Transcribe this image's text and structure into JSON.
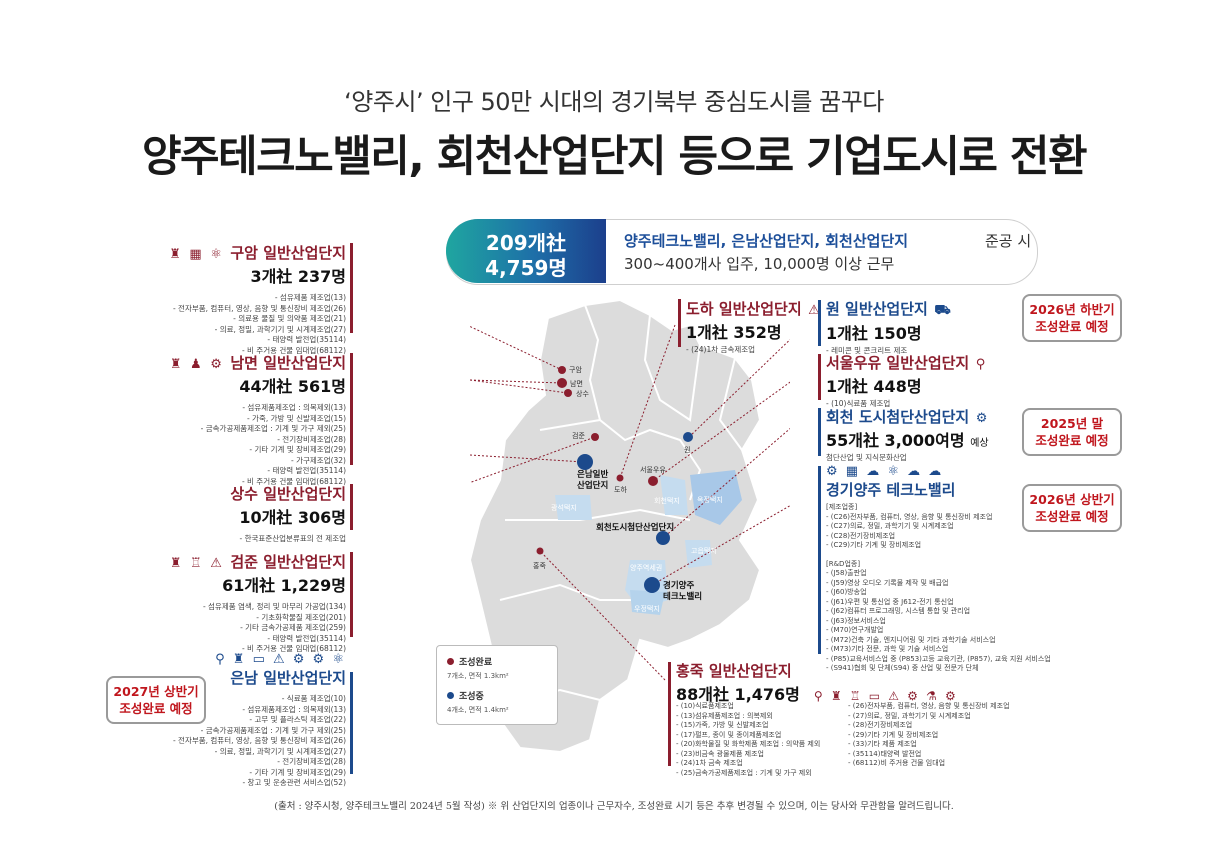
{
  "header": {
    "subtitle": "‘양주시’ 인구 50만 시대의 경기북부 중심도시를 꿈꾸다",
    "title": "양주테크노밸리, 회천산업단지 등으로 기업도시로 전환"
  },
  "banner": {
    "count": "209개社",
    "workers": "4,759명",
    "line1_highlight": "양주테크노밸리, 은남산업단지, 회천산업단지",
    "line1_rest": "준공 시",
    "line2": "300~400개사 입주, 10,000명 이상 근무"
  },
  "sites": {
    "guam": {
      "name": "구암 일반산업단지",
      "stats": "3개社 237명",
      "items": [
        "- 섬유제품 제조업(13)",
        "- 전자부품, 컴퓨터, 영상, 음향 및 통신장비 제조업(26)",
        "- 의료용 물질 및 의약품 제조업(21)",
        "- 의료, 정밀, 과학기기 및 시계제조업(27)",
        "- 태양력 발전업(35114)",
        "- 비 주거용 건물 임대업(68112)"
      ]
    },
    "nammyeon": {
      "name": "남면 일반산업단지",
      "stats": "44개社 561명",
      "items": [
        "- 섬유제품제조업 : 의복제외(13)",
        "- 가죽, 가방 및 신발제조업(15)",
        "- 금속가공제품제조업 : 기계 및 가구 제외(25)",
        "- 전기장비제조업(28)",
        "- 기타 기계 및 장비제조업(29)",
        "- 가구제조업(32)",
        "- 태양력 발전업(35114)",
        "- 비 주거용 건물 임대업(68112)"
      ]
    },
    "sangsu": {
      "name": "상수 일반산업단지",
      "stats": "10개社 306명",
      "items": [
        "- 한국표준산업분류표의 전 제조업"
      ]
    },
    "geomjun": {
      "name": "검준 일반산업단지",
      "stats": "61개社 1,229명",
      "items": [
        "- 섬유제품 염색, 정리 및 마무리 가공업(134)",
        "- 기초화학물질 제조업(201)",
        "- 기타 금속가공제품 제조업(259)",
        "- 태양력 발전업(35114)",
        "- 비 주거용 건물 임대업(68112)"
      ]
    },
    "eunnam": {
      "name": "은남 일반산업단지",
      "items": [
        "- 식료품 제조업(10)",
        "- 섬유제품제조업 : 의복제외(13)",
        "- 고무 및 플라스틱 제조업(22)",
        "- 금속가공제품제조업 : 기계 및 가구 제외(25)",
        "- 전자부품, 컴퓨터, 영상, 음향 및 통신장비 제조업(26)",
        "- 의료, 정밀, 과학기기 및 시계제조업(27)",
        "- 전기장비제조업(28)",
        "- 기타 기계 및 장비제조업(29)",
        "- 창고 및 운송관련 서비스업(52)"
      ]
    },
    "doha": {
      "name": "도하 일반산업단지",
      "stats": "1개社 352명",
      "items": [
        "- (24)1차 금속제조업"
      ]
    },
    "won": {
      "name": "원 일반산업단지",
      "stats": "1개社 150명",
      "items": [
        "- 레미콘 및 콘크리트 제조"
      ]
    },
    "seoulmilk": {
      "name": "서울우유 일반산업단지",
      "stats": "1개社 448명",
      "items": [
        "- (10)식료품 제조업"
      ]
    },
    "hoecheon": {
      "name": "회천 도시첨단산업단지",
      "stats": "55개社 3,000여명",
      "stats_suffix": "예상",
      "items": [
        "첨단산업 및 지식문화산업"
      ]
    },
    "technovalley": {
      "name": "경기양주 테크노밸리",
      "items": [
        "[제조업종]",
        "- (C26)전자부품, 컴퓨터, 영상, 음향 및 통신장비 제조업",
        "- (C27)의료, 정밀, 과학기기 및 시계제조업",
        "- (C28)전기장비제조업",
        "- (C29)기타 기계 및 장비제조업",
        "",
        "[R&D업종]",
        "- (J58)출판업",
        "- (J59)영상 오디오 기록물 제작 및 배급업",
        "- (J60)방송업",
        "- (J61)우편 및 통신업 중 J612-전기 통신업",
        "- (J62)컴퓨터 프로그래밍, 시스템 통합 및 관리업",
        "- (J63)정보서비스업",
        "- (M70)연구개발업",
        "- (M72)건축 기술, 엔지니어링 및 기타 과학기술 서비스업",
        "- (M73)기타 전문, 과학 및 기술 서비스업",
        "- (P85)교육서비스업 중 (P853)고등 교육기관, (P857), 교육 지원 서비스업",
        "- (S941)협회 및 단체(S94) 중 산업 및 전문가 단체"
      ]
    },
    "hongjuk": {
      "name": "홍죽 일반산업단지",
      "stats": "88개社 1,476명",
      "items_left": [
        "- (10)식료품제조업",
        "- (13)섬유제품제조업 : 의복제외",
        "- (15)가죽, 가방 및 신발제조업",
        "- (17)펄프, 종이 및 종이제품제조업",
        "- (20)화학물질 및 화학제품 제조업 : 의약품 제외",
        "- (23)비금속 광물제품 제조업",
        "- (24)1차 금속 제조업",
        "- (25)금속가공제품제조업 : 기계 및 가구 제외"
      ],
      "items_right": [
        "- (26)전자부품, 컴퓨터, 영상, 음향 및 통신장비 제조업",
        "- (27)의료, 정밀, 과학기기 및 시계제조업",
        "- (28)전기장비제조업",
        "- (29)기타 기계 및 장비제조업",
        "- (33)기타 제품 제조업",
        "- (35114)태양력 발전업",
        "- (68112)비 주거용 건물 임대업"
      ]
    }
  },
  "callouts": {
    "won": [
      "2026년 하반기",
      "조성완료 예정"
    ],
    "hoecheon": [
      "2025년 말",
      "조성완료 예정"
    ],
    "technovalley": [
      "2026년 상반기",
      "조성완료 예정"
    ],
    "eunnam": [
      "2027년 상반기",
      "조성완료 예정"
    ]
  },
  "map_labels": {
    "guam": "구암",
    "nammyeon": "남면",
    "sangsu": "상수",
    "geomjun": "검준",
    "won": "원",
    "eunnam": "은남일반",
    "eunnam2": "산업단지",
    "doha": "도하",
    "seoulmilk": "서울우유",
    "hoecheon_station": "회천택지",
    "okjeong": "옥정택지",
    "gwangseok": "광석택지",
    "hoecheon_dosi": "회천도시첨단산업단지",
    "goeup": "고읍택지",
    "hongjuk": "홍죽",
    "yangju_station": "양주역세권",
    "tv1": "경기양주",
    "tv2": "테크노밸리",
    "masan": "우정택지"
  },
  "legend": {
    "done_label": "조성완료",
    "done_sub": "7개소, 면적 1.3km²",
    "progress_label": "조성중",
    "progress_sub": "4개소, 면적 1.4km²"
  },
  "source": "(출처 : 양주시청, 양주테크노밸리 2024년 5월 작성)  ※ 위 산업단지의 업종이나 근무자수, 조성완료 시기 등은 추후 변경될 수 있으며, 이는 당사와 무관함을 알려드립니다.",
  "colors": {
    "maroon": "#8b1e2e",
    "navy": "#1c4a8c",
    "teal": "#1fa6a0",
    "red": "#c0161d"
  }
}
